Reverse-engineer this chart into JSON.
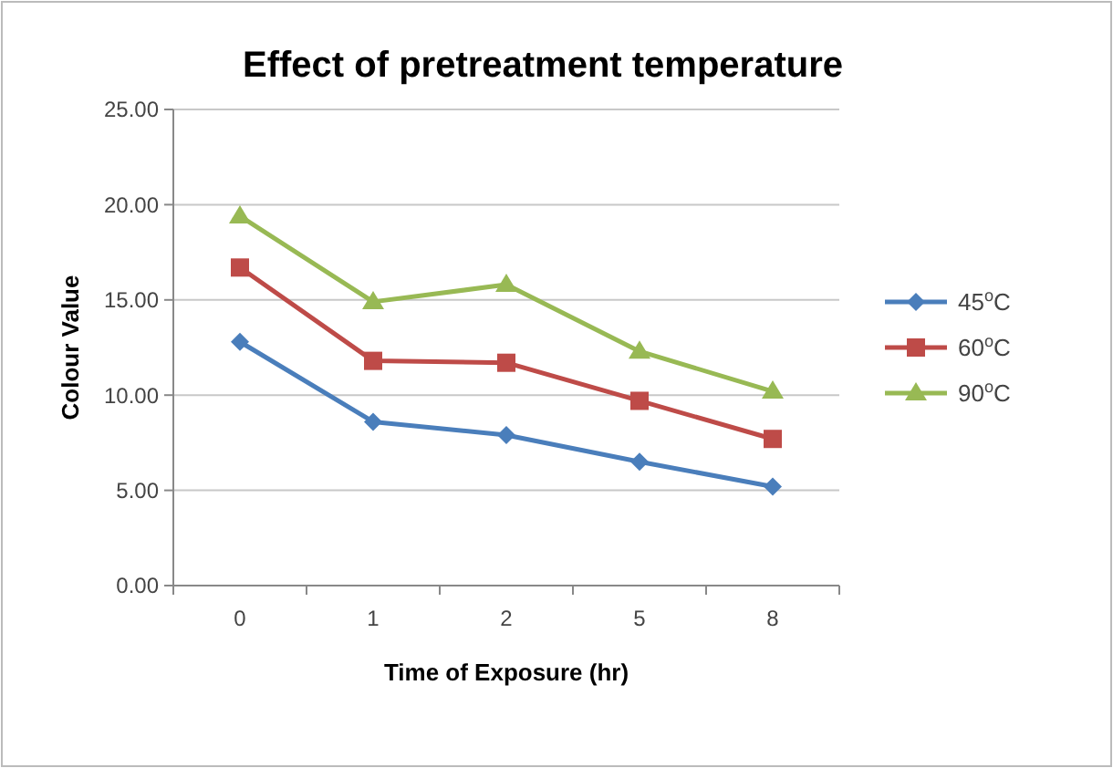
{
  "chart_data": {
    "type": "line",
    "title": "Effect of pretreatment temperature",
    "xlabel": "Time of Exposure (hr)",
    "ylabel": "Colour Value",
    "categories": [
      "0",
      "1",
      "2",
      "5",
      "8"
    ],
    "series": [
      {
        "name": "45$^{o}$C",
        "color": "#4a7ebb",
        "values": [
          12.8,
          8.6,
          7.9,
          6.5,
          5.2
        ],
        "marker": "diamond"
      },
      {
        "name": "60$^{o}$C",
        "color": "#be4b48",
        "values": [
          16.7,
          11.8,
          11.7,
          9.7,
          7.7
        ],
        "marker": "square"
      },
      {
        "name": "90$^{o}$C",
        "color": "#98b954",
        "values": [
          19.4,
          14.9,
          15.8,
          12.3,
          10.2
        ],
        "marker": "triangle"
      }
    ],
    "ylim": [
      0,
      25
    ],
    "yticks": [
      {
        "value": 0,
        "label": "0.00"
      },
      {
        "value": 5,
        "label": "5.00"
      },
      {
        "value": 10,
        "label": "10.00"
      },
      {
        "value": 15,
        "label": "15.00"
      },
      {
        "value": 20,
        "label": "20.00"
      },
      {
        "value": 25,
        "label": "25.00"
      }
    ],
    "grid": "y",
    "legend": "right"
  }
}
